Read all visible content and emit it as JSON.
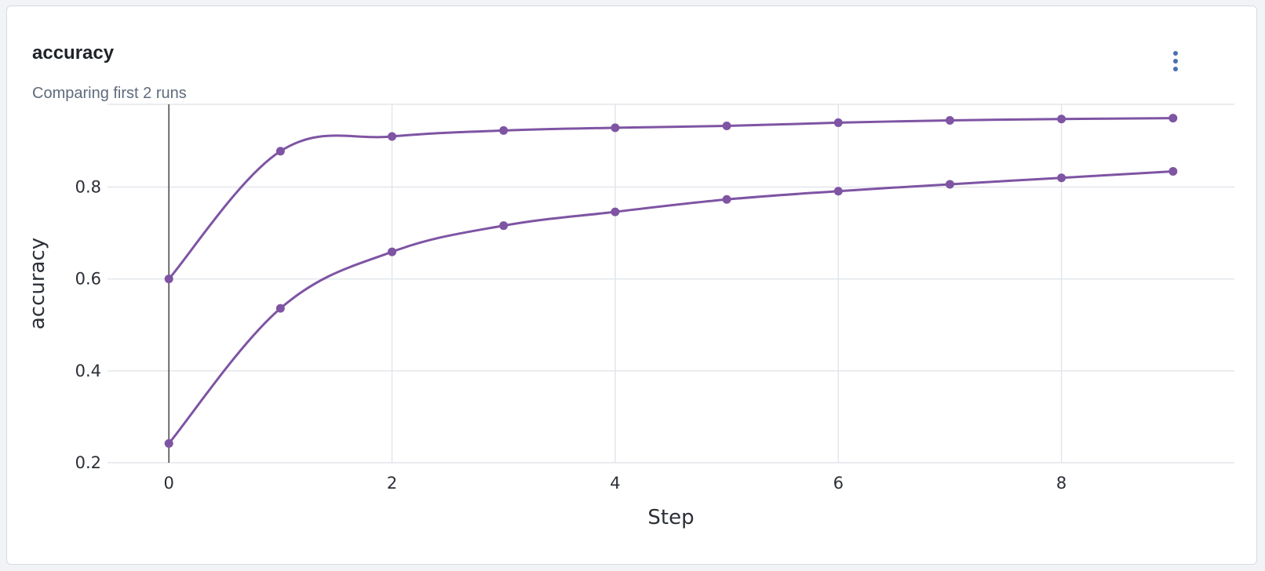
{
  "panel": {
    "title": "accuracy",
    "subtitle": "Comparing first 2 runs",
    "menu_icon": "more-vertical-icon"
  },
  "colors": {
    "series": "#7e54a3",
    "grid": "#e3e6ea",
    "zero_line": "#444444",
    "menu_dots": "#4a6fb5"
  },
  "chart_data": {
    "type": "line",
    "xlabel": "Step",
    "ylabel": "accuracy",
    "xlim": [
      -0.55,
      9.55
    ],
    "ylim": [
      0.2,
      0.98
    ],
    "x_ticks": [
      0,
      2,
      4,
      6,
      8
    ],
    "y_ticks": [
      0.2,
      0.4,
      0.6,
      0.8
    ],
    "grid": true,
    "legend": "none",
    "series": [
      {
        "x": [
          0,
          1,
          2,
          3,
          4,
          5,
          6,
          7,
          8,
          9
        ],
        "values": [
          0.6,
          0.878,
          0.91,
          0.923,
          0.929,
          0.933,
          0.94,
          0.945,
          0.948,
          0.95
        ]
      },
      {
        "x": [
          0,
          1,
          2,
          3,
          4,
          5,
          6,
          7,
          8,
          9
        ],
        "values": [
          0.242,
          0.536,
          0.659,
          0.716,
          0.746,
          0.773,
          0.791,
          0.806,
          0.82,
          0.834
        ]
      }
    ]
  }
}
